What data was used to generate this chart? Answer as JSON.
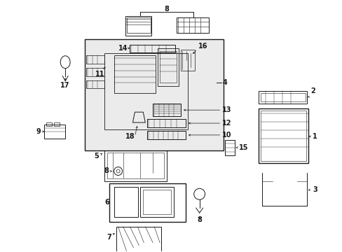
{
  "bg_color": "#ffffff",
  "line_color": "#1a1a1a",
  "box_fill": "#ebebeb",
  "figsize": [
    4.89,
    3.6
  ],
  "dpi": 100,
  "lw": 0.7
}
